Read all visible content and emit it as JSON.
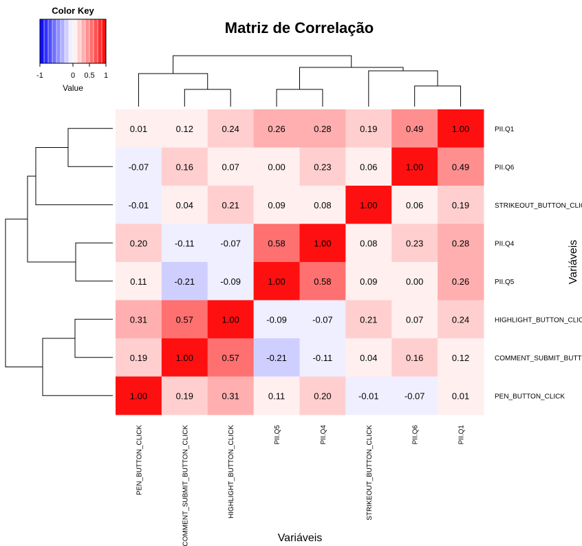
{
  "chart_data": {
    "type": "heatmap",
    "title": "Matriz de Correlação",
    "xlabel": "Variáveis",
    "ylabel": "Variáveis",
    "columns": [
      "PEN_BUTTON_CLICK",
      "COMMENT_SUBMIT_BUTTON_CLICK",
      "HIGHLIGHT_BUTTON_CLICK",
      "PII.Q5",
      "PII.Q4",
      "STRIKEOUT_BUTTON_CLICK",
      "PII.Q6",
      "PII.Q1"
    ],
    "rows": [
      "PII.Q1",
      "PII.Q6",
      "STRIKEOUT_BUTTON_CLICK",
      "PII.Q4",
      "PII.Q5",
      "HIGHLIGHT_BUTTON_CLICK",
      "COMMENT_SUBMIT_BUTTON_CLICK",
      "PEN_BUTTON_CLICK"
    ],
    "values": [
      [
        0.01,
        0.12,
        0.24,
        0.26,
        0.28,
        0.19,
        0.49,
        1.0
      ],
      [
        -0.07,
        0.16,
        0.07,
        0.0,
        0.23,
        0.06,
        1.0,
        0.49
      ],
      [
        -0.01,
        0.04,
        0.21,
        0.09,
        0.08,
        1.0,
        0.06,
        0.19
      ],
      [
        0.2,
        -0.11,
        -0.07,
        0.58,
        1.0,
        0.08,
        0.23,
        0.28
      ],
      [
        0.11,
        -0.21,
        -0.09,
        1.0,
        0.58,
        0.09,
        0.0,
        0.26
      ],
      [
        0.31,
        0.57,
        1.0,
        -0.09,
        -0.07,
        0.21,
        0.07,
        0.24
      ],
      [
        0.19,
        1.0,
        0.57,
        -0.21,
        -0.11,
        0.04,
        0.16,
        0.12
      ],
      [
        1.0,
        0.19,
        0.31,
        0.11,
        0.2,
        -0.01,
        -0.07,
        0.01
      ]
    ],
    "value_range": [
      -1,
      1
    ],
    "colors": {
      "low": "#0000ff",
      "mid": "#ffffff",
      "high": "#ff0000"
    },
    "color_key": {
      "title": "Color Key",
      "label": "Value",
      "ticks": [
        "-1",
        "0",
        "0.5",
        "1"
      ],
      "tick_values": [
        -1,
        0,
        0.5,
        1
      ]
    }
  }
}
